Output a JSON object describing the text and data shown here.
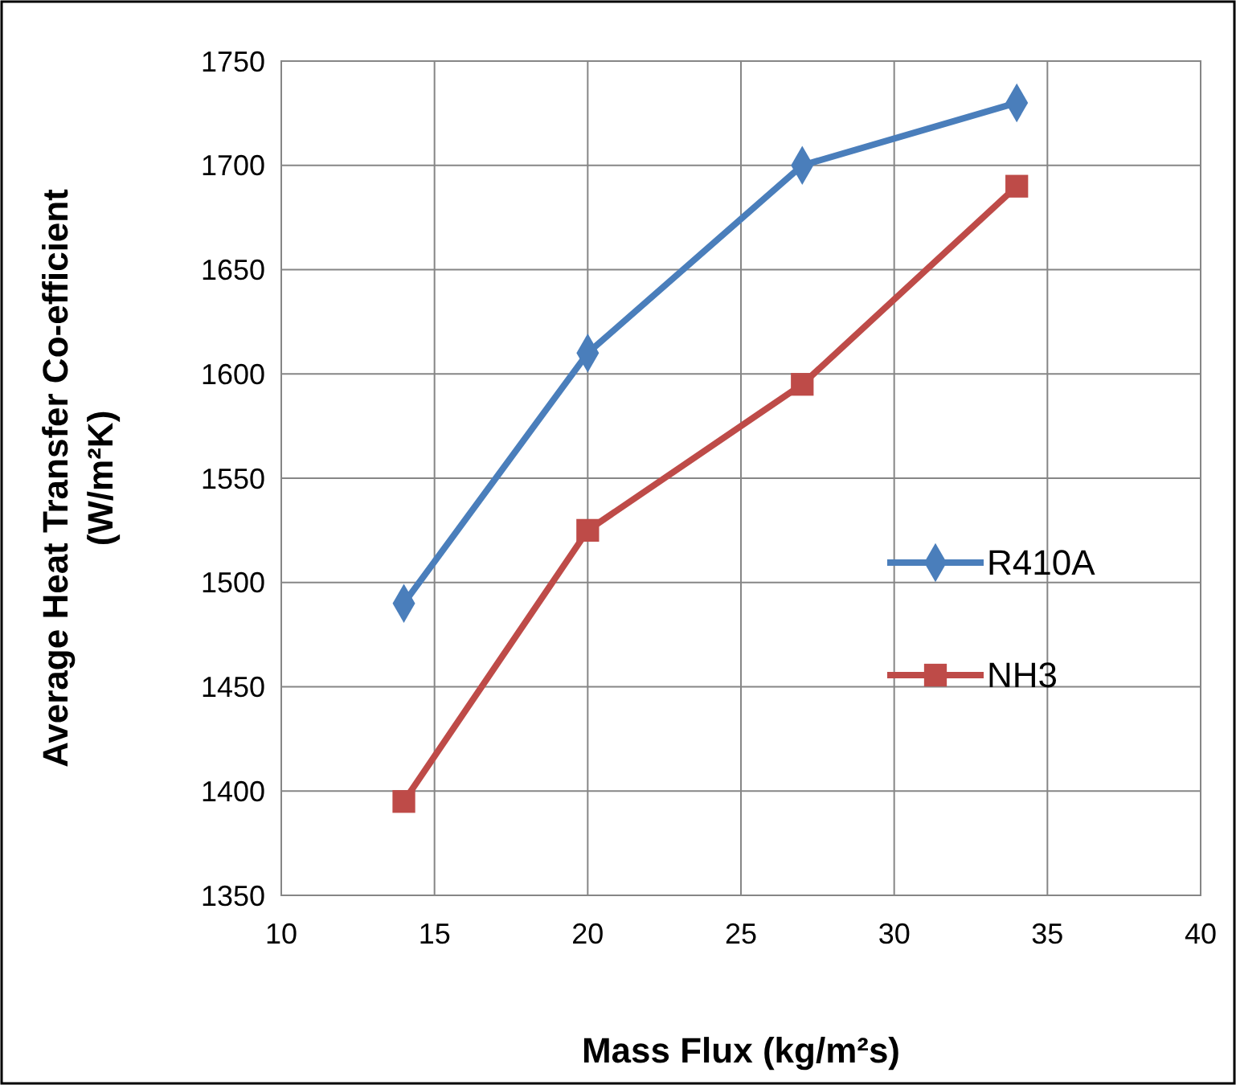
{
  "chart_data": {
    "type": "line",
    "xlabel": "Mass Flux (kg/m²s)",
    "ylabel": "Average Heat Transfer Co-efficient (W/m²K)",
    "x": [
      14,
      20,
      27,
      34
    ],
    "series": [
      {
        "name": "R410A",
        "color": "#4a7ebb",
        "values": [
          1490,
          1610,
          1700,
          1730
        ],
        "marker": "diamond"
      },
      {
        "name": "NH3",
        "color": "#be4b48",
        "values": [
          1395,
          1525,
          1595,
          1690
        ],
        "marker": "square"
      }
    ],
    "xlim": [
      10,
      40
    ],
    "xticks": [
      10,
      15,
      20,
      25,
      30,
      35,
      40
    ],
    "ylim": [
      1350,
      1750
    ],
    "yticks": [
      1350,
      1400,
      1450,
      1500,
      1550,
      1600,
      1650,
      1700,
      1750
    ],
    "grid": true,
    "legend": "right",
    "line_style": "solid"
  }
}
